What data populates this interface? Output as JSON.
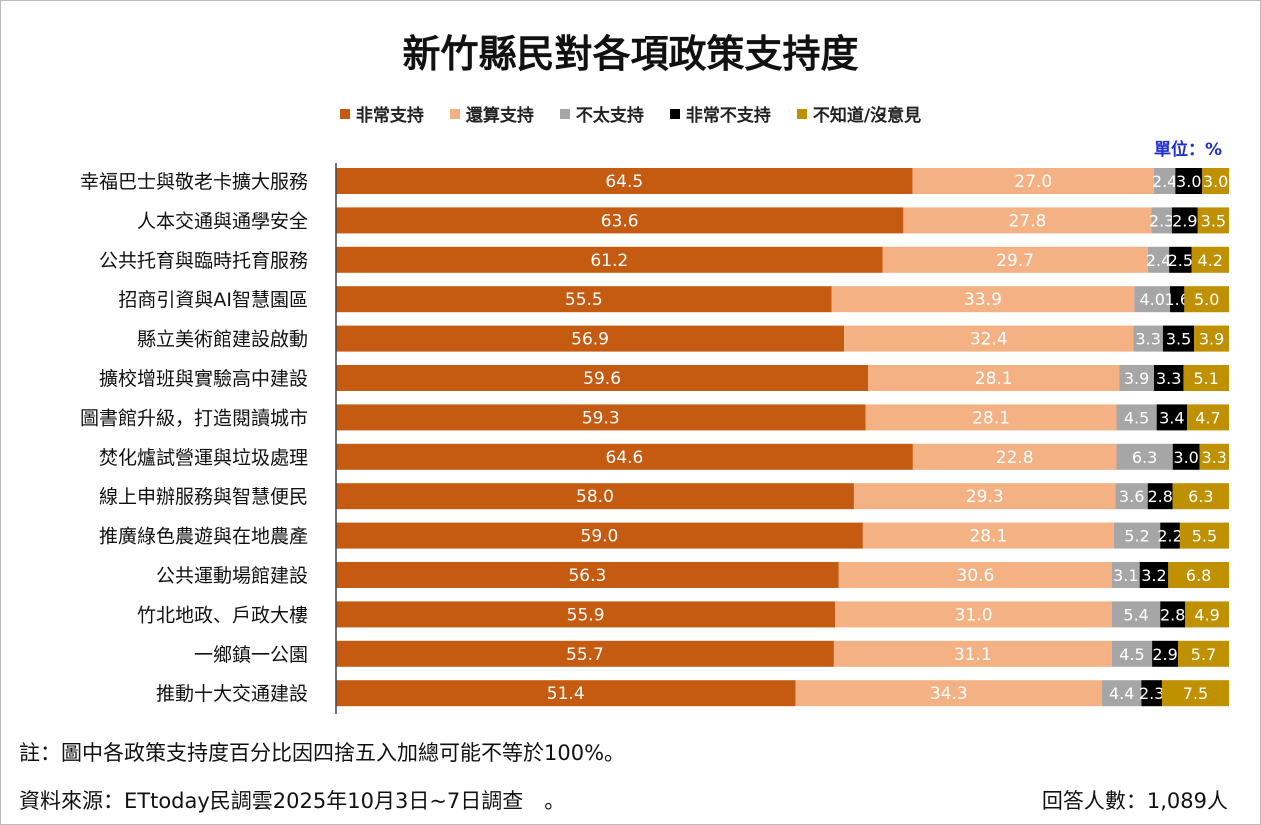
{
  "chart_data": {
    "type": "bar",
    "orientation": "horizontal-stacked",
    "title": "新竹縣民對各項政策支持度",
    "unit_label": "單位：%",
    "legend_position": "top",
    "categories": [
      "幸福巴士與敬老卡擴大服務",
      "人本交通與通學安全",
      "公共托育與臨時托育服務",
      "招商引資與AI智慧園區",
      "縣立美術館建設啟動",
      "擴校增班與實驗高中建設",
      "圖書館升級，打造閱讀城市",
      "焚化爐試營運與垃圾處理",
      "線上申辦服務與智慧便民",
      "推廣綠色農遊與在地農產",
      "公共運動場館建設",
      "竹北地政、戶政大樓",
      "一鄉鎮一公園",
      "推動十大交通建設"
    ],
    "series": [
      {
        "name": "非常支持",
        "color": "#c55a11",
        "label_color": "#ffffff",
        "values": [
          64.5,
          63.6,
          61.2,
          55.5,
          56.9,
          59.6,
          59.3,
          64.6,
          58.0,
          59.0,
          56.3,
          55.9,
          55.7,
          51.4
        ]
      },
      {
        "name": "還算支持",
        "color": "#f4b183",
        "label_color": "#ffffff",
        "values": [
          27.0,
          27.8,
          29.7,
          33.9,
          32.4,
          28.1,
          28.1,
          22.8,
          29.3,
          28.1,
          30.6,
          31.0,
          31.1,
          34.3
        ]
      },
      {
        "name": "不太支持",
        "color": "#a6a6a6",
        "label_color": "#ffffff",
        "values": [
          2.4,
          2.3,
          2.4,
          4.0,
          3.3,
          3.9,
          4.5,
          6.3,
          3.6,
          5.2,
          3.1,
          5.4,
          4.5,
          4.4
        ]
      },
      {
        "name": "非常不支持",
        "color": "#000000",
        "label_color": "#ffffff",
        "values": [
          3.0,
          2.9,
          2.5,
          1.6,
          3.5,
          3.3,
          3.4,
          3.0,
          2.8,
          2.2,
          3.2,
          2.8,
          2.9,
          2.3
        ]
      },
      {
        "name": "不知道/沒意見",
        "color": "#bf9000",
        "label_color": "#ffffff",
        "values": [
          3.0,
          3.5,
          4.2,
          5.0,
          3.9,
          5.1,
          4.7,
          3.3,
          6.3,
          5.5,
          6.8,
          4.9,
          5.7,
          7.5
        ]
      }
    ]
  },
  "footer": {
    "note": "註：圖中各政策支持度百分比因四捨五入加總可能不等於100%。",
    "source": "資料來源：ETtoday民調雲2025年10月3日~7日調查　。",
    "respondents": "回答人數：1,089人"
  }
}
